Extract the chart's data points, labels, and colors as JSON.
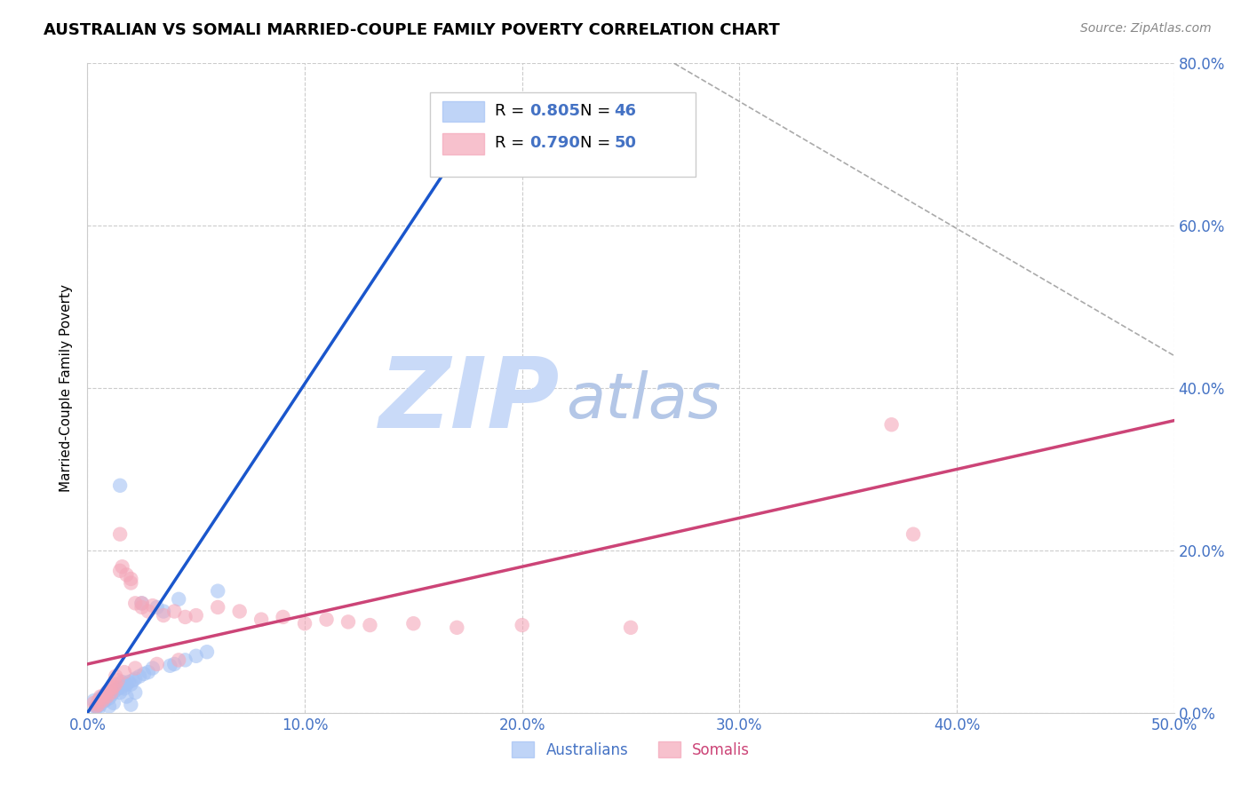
{
  "title": "AUSTRALIAN VS SOMALI MARRIED-COUPLE FAMILY POVERTY CORRELATION CHART",
  "source": "Source: ZipAtlas.com",
  "ylabel": "Married-Couple Family Poverty",
  "xlabel_ticks": [
    "0.0%",
    "10.0%",
    "20.0%",
    "30.0%",
    "40.0%",
    "50.0%"
  ],
  "xlabel_vals": [
    0.0,
    10.0,
    20.0,
    30.0,
    40.0,
    50.0
  ],
  "ylabel_ticks": [
    "0.0%",
    "20.0%",
    "40.0%",
    "60.0%",
    "80.0%"
  ],
  "ylabel_vals": [
    0.0,
    20.0,
    40.0,
    60.0,
    80.0
  ],
  "xlim": [
    0.0,
    50.0
  ],
  "ylim": [
    0.0,
    80.0
  ],
  "background_color": "#ffffff",
  "grid_color": "#cccccc",
  "tick_color": "#4472c4",
  "australian_color": "#a4c2f4",
  "somali_color": "#f4a7b9",
  "australian_line_color": "#1a56cc",
  "somali_line_color": "#cc4477",
  "R_australian": 0.805,
  "N_australian": 46,
  "R_somali": 0.79,
  "N_somali": 50,
  "australian_scatter_x": [
    0.3,
    0.4,
    0.5,
    0.6,
    0.7,
    0.8,
    0.9,
    1.0,
    1.1,
    1.2,
    1.3,
    1.4,
    1.5,
    1.6,
    1.7,
    1.8,
    1.9,
    2.0,
    2.1,
    2.2,
    2.4,
    2.5,
    2.6,
    2.8,
    3.0,
    3.2,
    3.5,
    3.8,
    4.0,
    4.2,
    4.5,
    5.0,
    5.5,
    6.0,
    1.5,
    0.5,
    0.6,
    0.8,
    1.0,
    1.2,
    1.8,
    2.2,
    0.4,
    1.6,
    17.5,
    2.0
  ],
  "australian_scatter_y": [
    1.5,
    0.8,
    1.2,
    1.8,
    2.0,
    1.5,
    2.5,
    1.8,
    2.2,
    2.5,
    2.8,
    3.0,
    2.5,
    3.2,
    3.0,
    3.5,
    3.8,
    3.5,
    4.0,
    4.2,
    4.5,
    13.5,
    4.8,
    5.0,
    5.5,
    13.0,
    12.5,
    5.8,
    6.0,
    14.0,
    6.5,
    7.0,
    7.5,
    15.0,
    28.0,
    0.5,
    1.0,
    1.5,
    0.8,
    1.2,
    2.0,
    2.5,
    0.6,
    3.8,
    69.0,
    1.0
  ],
  "somali_scatter_x": [
    0.3,
    0.4,
    0.5,
    0.6,
    0.7,
    0.8,
    0.9,
    1.0,
    1.1,
    1.2,
    1.3,
    1.4,
    1.5,
    1.6,
    1.8,
    2.0,
    2.2,
    2.5,
    2.8,
    3.0,
    3.5,
    4.0,
    4.5,
    5.0,
    6.0,
    7.0,
    8.0,
    9.0,
    10.0,
    11.0,
    12.0,
    13.0,
    15.0,
    17.0,
    20.0,
    25.0,
    0.5,
    0.7,
    0.9,
    1.1,
    1.5,
    2.0,
    2.5,
    37.0,
    38.0,
    1.3,
    1.7,
    2.2,
    3.2,
    4.2
  ],
  "somali_scatter_y": [
    1.2,
    0.8,
    1.5,
    2.0,
    1.8,
    2.2,
    2.5,
    2.8,
    3.0,
    3.2,
    3.5,
    4.0,
    17.5,
    18.0,
    17.0,
    16.5,
    13.5,
    13.0,
    12.5,
    13.2,
    12.0,
    12.5,
    11.8,
    12.0,
    13.0,
    12.5,
    11.5,
    11.8,
    11.0,
    11.5,
    11.2,
    10.8,
    11.0,
    10.5,
    10.8,
    10.5,
    1.0,
    1.5,
    2.0,
    2.5,
    22.0,
    16.0,
    13.5,
    35.5,
    22.0,
    4.5,
    5.0,
    5.5,
    6.0,
    6.5
  ],
  "aus_regline_x": [
    0.0,
    18.5
  ],
  "aus_regline_y": [
    0.0,
    75.0
  ],
  "som_regline_x": [
    0.0,
    50.0
  ],
  "som_regline_y": [
    6.0,
    36.0
  ],
  "diag_line_x": [
    27.0,
    50.0
  ],
  "diag_line_y": [
    80.0,
    44.0
  ],
  "legend_aus_text_color": "#4472c4",
  "legend_som_text_color": "#cc4477",
  "watermark_zip_color": "#c9daf8",
  "watermark_atlas_color": "#b4c7e7"
}
